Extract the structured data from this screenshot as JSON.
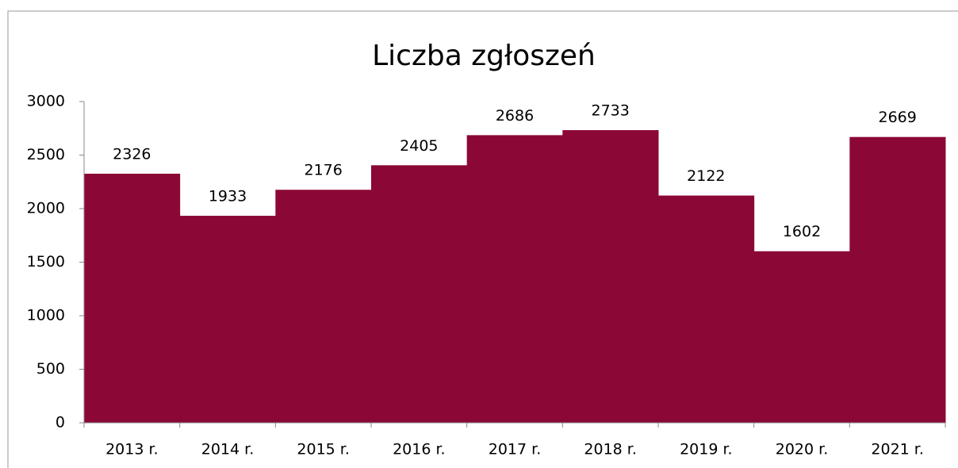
{
  "chart_data": {
    "type": "bar",
    "title": "Liczba zgłoszeń",
    "categories": [
      "2013 r.",
      "2014 r.",
      "2015 r.",
      "2016 r.",
      "2017 r.",
      "2018 r.",
      "2019 r.",
      "2020 r.",
      "2021 r."
    ],
    "values": [
      2326,
      1933,
      2176,
      2405,
      2686,
      2733,
      2122,
      1602,
      2669
    ],
    "color": "#8b0836",
    "ylim": [
      0,
      3000
    ],
    "yticks": [
      0,
      500,
      1000,
      1500,
      2000,
      2500,
      3000
    ],
    "grid": false
  }
}
